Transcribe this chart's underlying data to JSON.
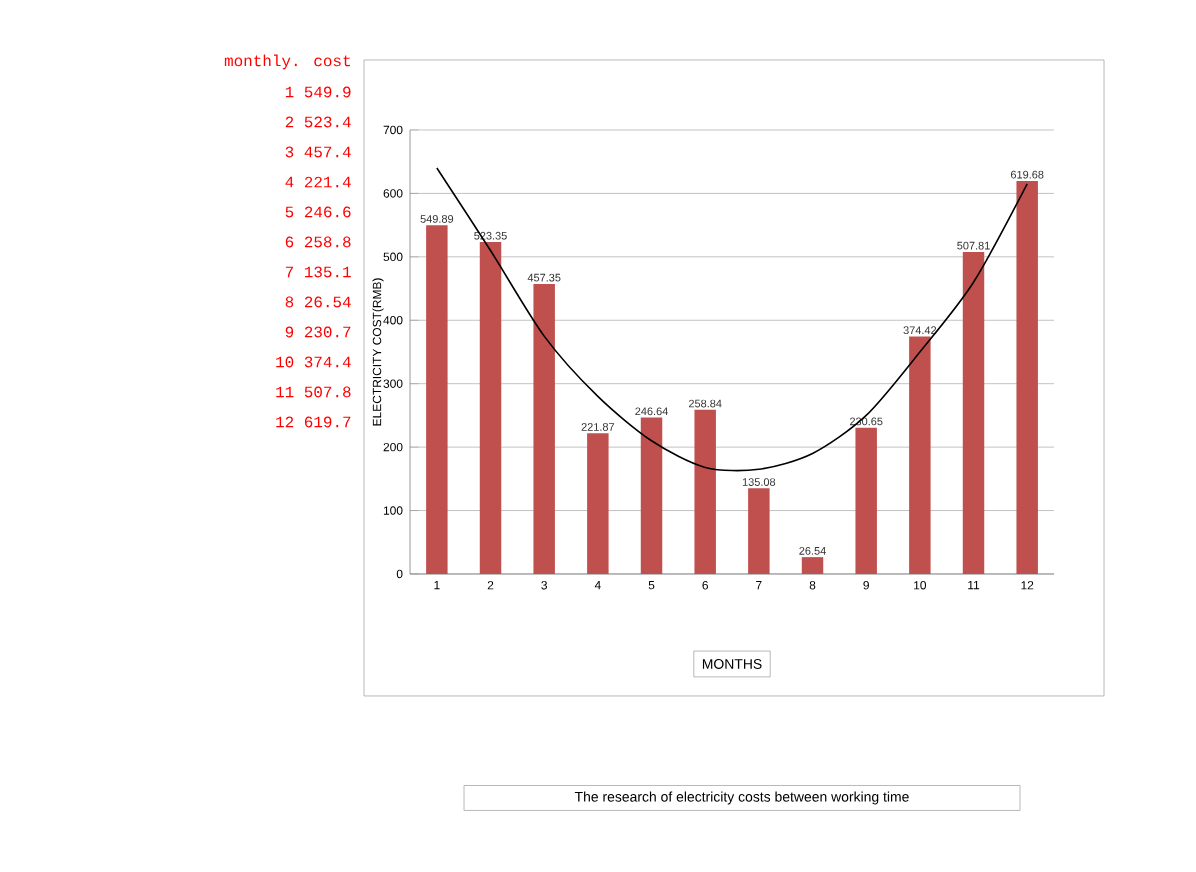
{
  "chart_data": {
    "type": "bar",
    "xlabel": "MONTHS",
    "ylabel": "ELECTRICITY COST(RMB)",
    "categories": [
      "1",
      "2",
      "3",
      "4",
      "5",
      "6",
      "7",
      "8",
      "9",
      "10",
      "11",
      "12"
    ],
    "series": [
      {
        "color": "#c0504d",
        "values": [
          549.89,
          523.35,
          457.35,
          221.87,
          246.64,
          258.84,
          135.08,
          26.54,
          230.65,
          374.42,
          507.81,
          619.68
        ],
        "value_labels": [
          "549.89",
          "523.35",
          "457.35",
          "221.87",
          "246.64",
          "258.84",
          "135.08",
          "26.54",
          "230.65",
          "374.42",
          "507.81",
          "619.68"
        ]
      },
      {
        "type": "line",
        "color": "#000000",
        "values": [
          640,
          510,
          375,
          280,
          210,
          168,
          165,
          190,
          250,
          350,
          460,
          615
        ]
      }
    ],
    "ylim": [
      0,
      700
    ],
    "yticks": [
      0,
      100,
      200,
      300,
      400,
      500,
      600,
      700
    ],
    "grid": "y",
    "marker": "none",
    "line_style": "solid",
    "annotations": [
      "monthly. cost",
      "1 549.9",
      "2 523.4",
      "3 457.4",
      "4 221.4",
      "5 246.6",
      "6 258.8",
      "7 135.1",
      "8 26.54",
      "9 230.7",
      "10 374.4",
      "11 507.8",
      "12 619.7",
      "The research of electricity costs between working time"
    ]
  }
}
